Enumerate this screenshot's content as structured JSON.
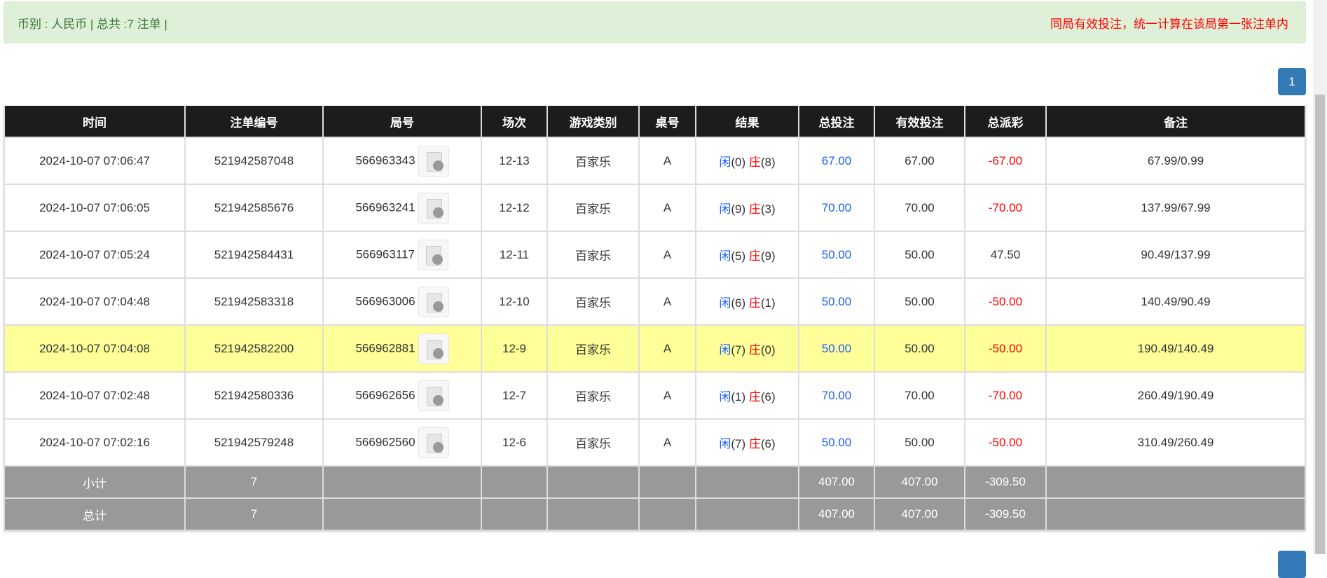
{
  "alert": {
    "summary": "币别 : 人民币 | 总共 :7 注单 |",
    "note": "同局有效投注，统一计算在该局第一张注单内"
  },
  "pagination": {
    "current": "1"
  },
  "table": {
    "headers": [
      "时间",
      "注单编号",
      "局号",
      "场次",
      "游戏类别",
      "桌号",
      "结果",
      "总投注",
      "有效投注",
      "总派彩",
      "备注"
    ],
    "rows": [
      {
        "time": "2024-10-07 07:06:47",
        "bet_id": "521942587048",
        "round": "566963343",
        "session": "12-13",
        "game": "百家乐",
        "table": "A",
        "player": "闲",
        "player_pts": "(0)",
        "banker": "庄",
        "banker_pts": "(8)",
        "total_bet": "67.00",
        "valid_bet": "67.00",
        "payout": "-67.00",
        "payout_negative": true,
        "remark": "67.99/0.99",
        "highlight": false
      },
      {
        "time": "2024-10-07 07:06:05",
        "bet_id": "521942585676",
        "round": "566963241",
        "session": "12-12",
        "game": "百家乐",
        "table": "A",
        "player": "闲",
        "player_pts": "(9)",
        "banker": "庄",
        "banker_pts": "(3)",
        "total_bet": "70.00",
        "valid_bet": "70.00",
        "payout": "-70.00",
        "payout_negative": true,
        "remark": "137.99/67.99",
        "highlight": false
      },
      {
        "time": "2024-10-07 07:05:24",
        "bet_id": "521942584431",
        "round": "566963117",
        "session": "12-11",
        "game": "百家乐",
        "table": "A",
        "player": "闲",
        "player_pts": "(5)",
        "banker": "庄",
        "banker_pts": "(9)",
        "total_bet": "50.00",
        "valid_bet": "50.00",
        "payout": "47.50",
        "payout_negative": false,
        "remark": "90.49/137.99",
        "highlight": false
      },
      {
        "time": "2024-10-07 07:04:48",
        "bet_id": "521942583318",
        "round": "566963006",
        "session": "12-10",
        "game": "百家乐",
        "table": "A",
        "player": "闲",
        "player_pts": "(6)",
        "banker": "庄",
        "banker_pts": "(1)",
        "total_bet": "50.00",
        "valid_bet": "50.00",
        "payout": "-50.00",
        "payout_negative": true,
        "remark": "140.49/90.49",
        "highlight": false
      },
      {
        "time": "2024-10-07 07:04:08",
        "bet_id": "521942582200",
        "round": "566962881",
        "session": "12-9",
        "game": "百家乐",
        "table": "A",
        "player": "闲",
        "player_pts": "(7)",
        "banker": "庄",
        "banker_pts": "(0)",
        "total_bet": "50.00",
        "valid_bet": "50.00",
        "payout": "-50.00",
        "payout_negative": true,
        "remark": "190.49/140.49",
        "highlight": true
      },
      {
        "time": "2024-10-07 07:02:48",
        "bet_id": "521942580336",
        "round": "566962656",
        "session": "12-7",
        "game": "百家乐",
        "table": "A",
        "player": "闲",
        "player_pts": "(1)",
        "banker": "庄",
        "banker_pts": "(6)",
        "total_bet": "70.00",
        "valid_bet": "70.00",
        "payout": "-70.00",
        "payout_negative": true,
        "remark": "260.49/190.49",
        "highlight": false
      },
      {
        "time": "2024-10-07 07:02:16",
        "bet_id": "521942579248",
        "round": "566962560",
        "session": "12-6",
        "game": "百家乐",
        "table": "A",
        "player": "闲",
        "player_pts": "(7)",
        "banker": "庄",
        "banker_pts": "(6)",
        "total_bet": "50.00",
        "valid_bet": "50.00",
        "payout": "-50.00",
        "payout_negative": true,
        "remark": "310.49/260.49",
        "highlight": false
      }
    ],
    "summary": [
      {
        "label": "小计",
        "count": "7",
        "total_bet": "407.00",
        "valid_bet": "407.00",
        "payout": "-309.50"
      },
      {
        "label": "总计",
        "count": "7",
        "total_bet": "407.00",
        "valid_bet": "407.00",
        "payout": "-309.50"
      }
    ]
  },
  "colors": {
    "player": "#1a5cff",
    "banker": "#ff0000",
    "header_bg": "#1c1c1c",
    "highlight": "#ffff99",
    "summary_bg": "#999999",
    "accent": "#337ab7"
  }
}
